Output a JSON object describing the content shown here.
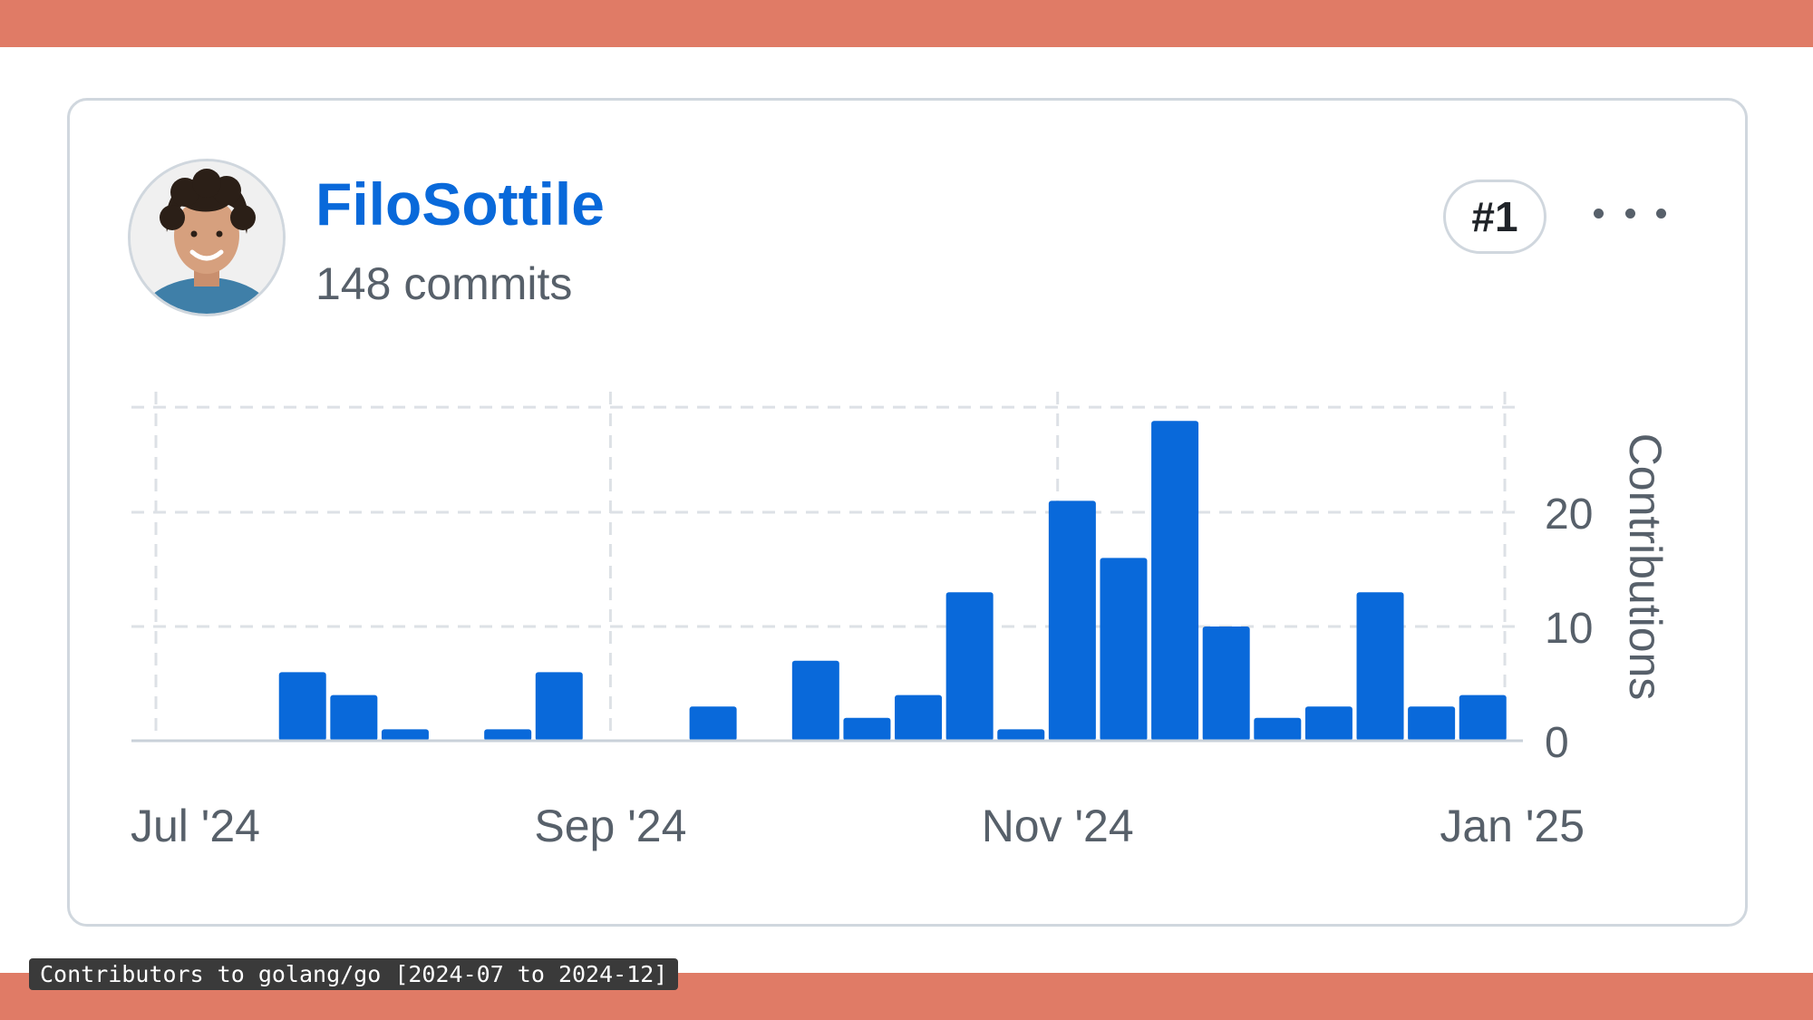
{
  "contributor": {
    "username": "FiloSottile",
    "commits_label": "148 commits",
    "rank": "#1",
    "avatar_icon": "avatar-photo",
    "more_icon": "kebab-horizontal-icon"
  },
  "chart_data": {
    "type": "bar",
    "ylabel": "Contributions",
    "yticks": [
      0,
      10,
      20
    ],
    "ylim": [
      0,
      30
    ],
    "xticks": [
      {
        "label": "Jul '24",
        "date": "2024-07-01"
      },
      {
        "label": "Sep '24",
        "date": "2024-09-01"
      },
      {
        "label": "Nov '24",
        "date": "2024-11-01"
      },
      {
        "label": "Jan '25",
        "date": "2025-01-01"
      }
    ],
    "x": [
      "2024-07-21",
      "2024-07-28",
      "2024-08-04",
      "2024-08-18",
      "2024-08-25",
      "2024-09-15",
      "2024-09-29",
      "2024-10-06",
      "2024-10-13",
      "2024-10-20",
      "2024-10-27",
      "2024-11-03",
      "2024-11-10",
      "2024-11-17",
      "2024-11-24",
      "2024-12-01",
      "2024-12-08",
      "2024-12-15",
      "2024-12-22",
      "2024-12-29"
    ],
    "values": [
      6,
      4,
      1,
      1,
      6,
      3,
      7,
      2,
      4,
      13,
      1,
      21,
      16,
      28,
      10,
      2,
      3,
      13,
      3,
      4
    ],
    "bar_color": "#0969da",
    "grid": true
  },
  "caption": "Contributors to golang/go [2024-07 to 2024-12]"
}
